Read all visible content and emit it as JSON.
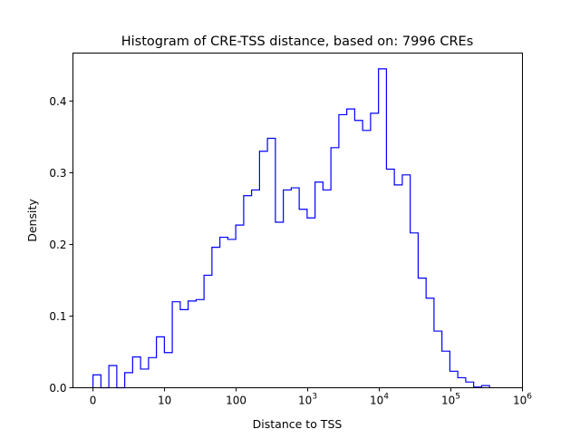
{
  "chart_data": {
    "type": "histogram-step",
    "title": "Histogram of CRE-TSS distance, based on: 7996 CREs",
    "xlabel": "Distance to TSS",
    "ylabel": "Density",
    "x_scale": "log10(distance+1)",
    "xlim_log": [
      -0.28,
      6
    ],
    "ylim": [
      0,
      0.467
    ],
    "x_ticks": [
      {
        "value": 0,
        "base": "0",
        "exp": ""
      },
      {
        "value": 1,
        "base": "10",
        "exp": ""
      },
      {
        "value": 2,
        "base": "100",
        "exp": ""
      },
      {
        "value": 3,
        "base": "10",
        "exp": "3"
      },
      {
        "value": 4,
        "base": "10",
        "exp": "4"
      },
      {
        "value": 5,
        "base": "10",
        "exp": "5"
      },
      {
        "value": 6,
        "base": "10",
        "exp": "6"
      }
    ],
    "y_ticks": [
      {
        "value": 0.0,
        "label": "0.0"
      },
      {
        "value": 0.1,
        "label": "0.1"
      },
      {
        "value": 0.2,
        "label": "0.2"
      },
      {
        "value": 0.3,
        "label": "0.3"
      },
      {
        "value": 0.4,
        "label": "0.4"
      }
    ],
    "bin_start_log": 0,
    "bin_width_log": 0.1108,
    "values": [
      0.018,
      0,
      0.031,
      0,
      0.021,
      0.043,
      0.026,
      0.042,
      0.071,
      0.049,
      0.12,
      0.109,
      0.121,
      0.123,
      0.157,
      0.196,
      0.21,
      0.207,
      0.227,
      0.268,
      0.276,
      0.33,
      0.348,
      0.231,
      0.276,
      0.279,
      0.249,
      0.237,
      0.287,
      0.276,
      0.335,
      0.381,
      0.389,
      0.373,
      0.359,
      0.383,
      0.445,
      0.305,
      0.283,
      0.297,
      0.216,
      0.153,
      0.125,
      0.079,
      0.051,
      0.023,
      0.014,
      0.008,
      0.001,
      0.003
    ],
    "line_color": "#0000ff",
    "grid": false,
    "legend": "none"
  }
}
